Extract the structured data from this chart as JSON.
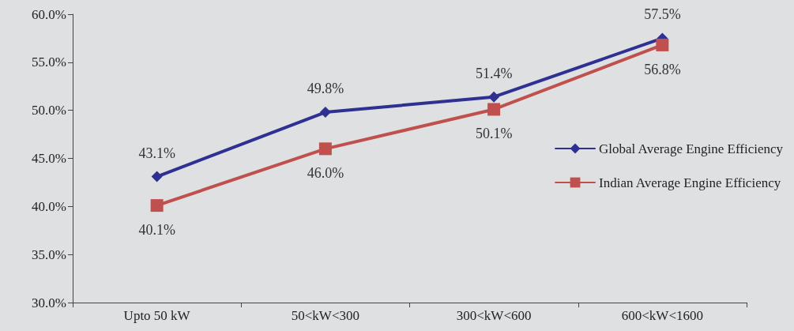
{
  "chart_data": {
    "type": "line",
    "categories": [
      "Upto 50 kW",
      "50<kW<300",
      "300<kW<600",
      "600<kW<1600"
    ],
    "series": [
      {
        "name": "Global Average Engine Efficiency",
        "color": "#2e3192",
        "marker": "diamond",
        "values": [
          43.1,
          49.8,
          51.4,
          57.5
        ],
        "value_labels": [
          "43.1%",
          "49.8%",
          "51.4%",
          "57.5%"
        ]
      },
      {
        "name": "Indian Average Engine Efficiency",
        "color": "#c0504d",
        "marker": "square",
        "values": [
          40.1,
          46.0,
          50.1,
          56.8
        ],
        "value_labels": [
          "40.1%",
          "46.0%",
          "50.1%",
          "56.8%"
        ]
      }
    ],
    "ylim": [
      30,
      60
    ],
    "yticks": [
      {
        "value": 30,
        "label": "30.0%"
      },
      {
        "value": 35,
        "label": "35.0%"
      },
      {
        "value": 40,
        "label": "40.0%"
      },
      {
        "value": 45,
        "label": "45.0%"
      },
      {
        "value": 50,
        "label": "50.0%"
      },
      {
        "value": 55,
        "label": "55.0%"
      },
      {
        "value": 60,
        "label": "60.0%"
      }
    ],
    "legend": "right",
    "line_style": "solid"
  }
}
